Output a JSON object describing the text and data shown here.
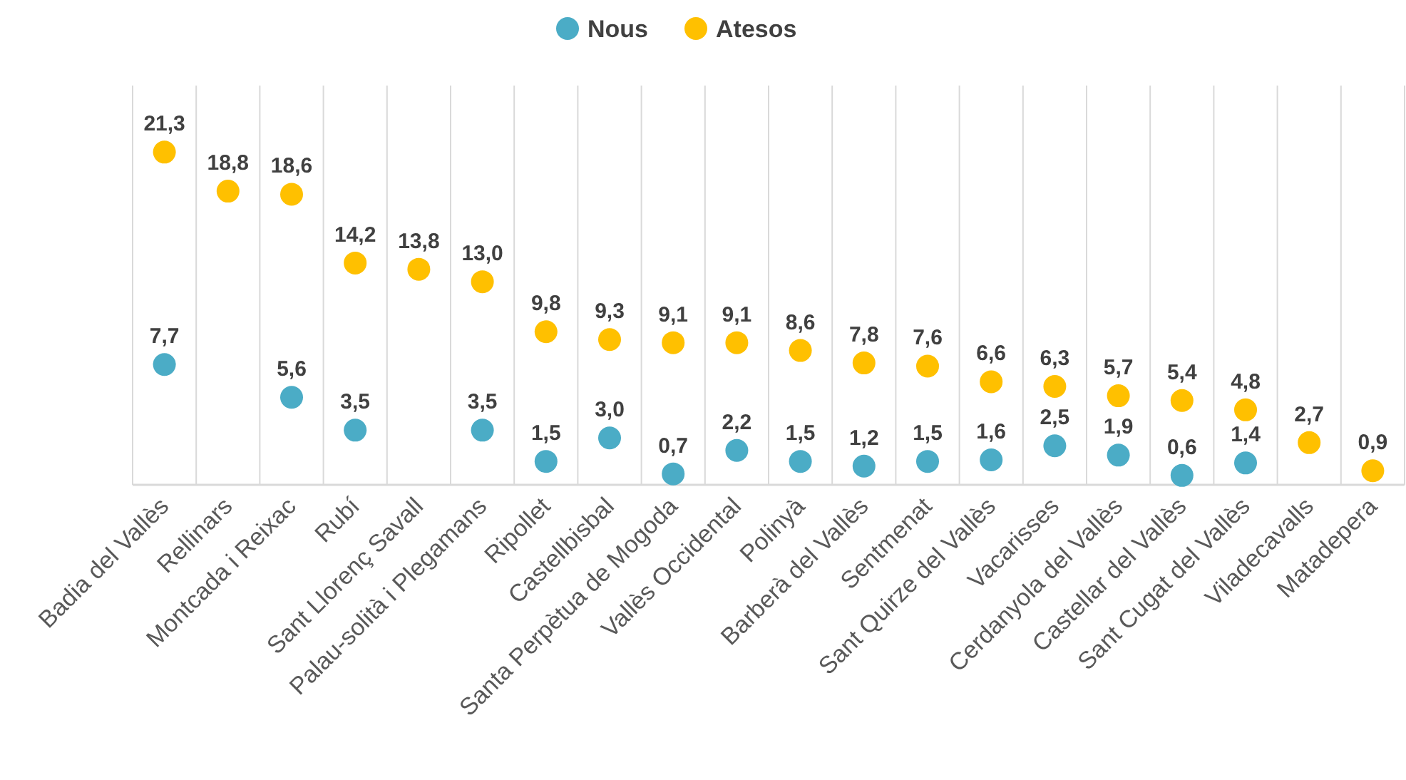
{
  "chart_data": {
    "type": "scatter",
    "categories": [
      "Badia del Vallès",
      "Rellinars",
      "Montcada i Reixac",
      "Rubí",
      "Sant Llorenç Savall",
      "Palau-solità i Plegamans",
      "Ripollet",
      "Castellbisbal",
      "Santa Perpètua de Mogoda",
      "Vallès Occidental",
      "Polinyà",
      "Barberà del Vallès",
      "Sentmenat",
      "Sant Quirze del Vallès",
      "Vacarisses",
      "Cerdanyola del Vallès",
      "Castellar del Vallès",
      "Sant Cugat del Vallès",
      "Viladecavalls",
      "Matadepera"
    ],
    "series": [
      {
        "name": "Nous",
        "color": "#4bacc6",
        "values": [
          7.7,
          null,
          5.6,
          3.5,
          null,
          3.5,
          1.5,
          3.0,
          0.7,
          2.2,
          1.5,
          1.2,
          1.5,
          1.6,
          2.5,
          1.9,
          0.6,
          1.4,
          null,
          null
        ],
        "value_labels": [
          "7,7",
          null,
          "5,6",
          "3,5",
          null,
          "3,5",
          "1,5",
          "3,0",
          "0,7",
          "2,2",
          "1,5",
          "1,2",
          "1,5",
          "1,6",
          "2,5",
          "1,9",
          "0,6",
          "1,4",
          null,
          null
        ]
      },
      {
        "name": "Atesos",
        "color": "#ffc000",
        "values": [
          21.3,
          18.8,
          18.6,
          14.2,
          13.8,
          13.0,
          9.8,
          9.3,
          9.1,
          9.1,
          8.6,
          7.8,
          7.6,
          6.6,
          6.3,
          5.7,
          5.4,
          4.8,
          2.7,
          0.9
        ],
        "value_labels": [
          "21,3",
          "18,8",
          "18,6",
          "14,2",
          "13,8",
          "13,0",
          "9,8",
          "9,3",
          "9,1",
          "9,1",
          "8,6",
          "7,8",
          "7,6",
          "6,6",
          "6,3",
          "5,7",
          "5,4",
          "4,8",
          "2,7",
          "0,9"
        ]
      }
    ],
    "grid": "x",
    "legend": "top",
    "marker": "circle"
  }
}
